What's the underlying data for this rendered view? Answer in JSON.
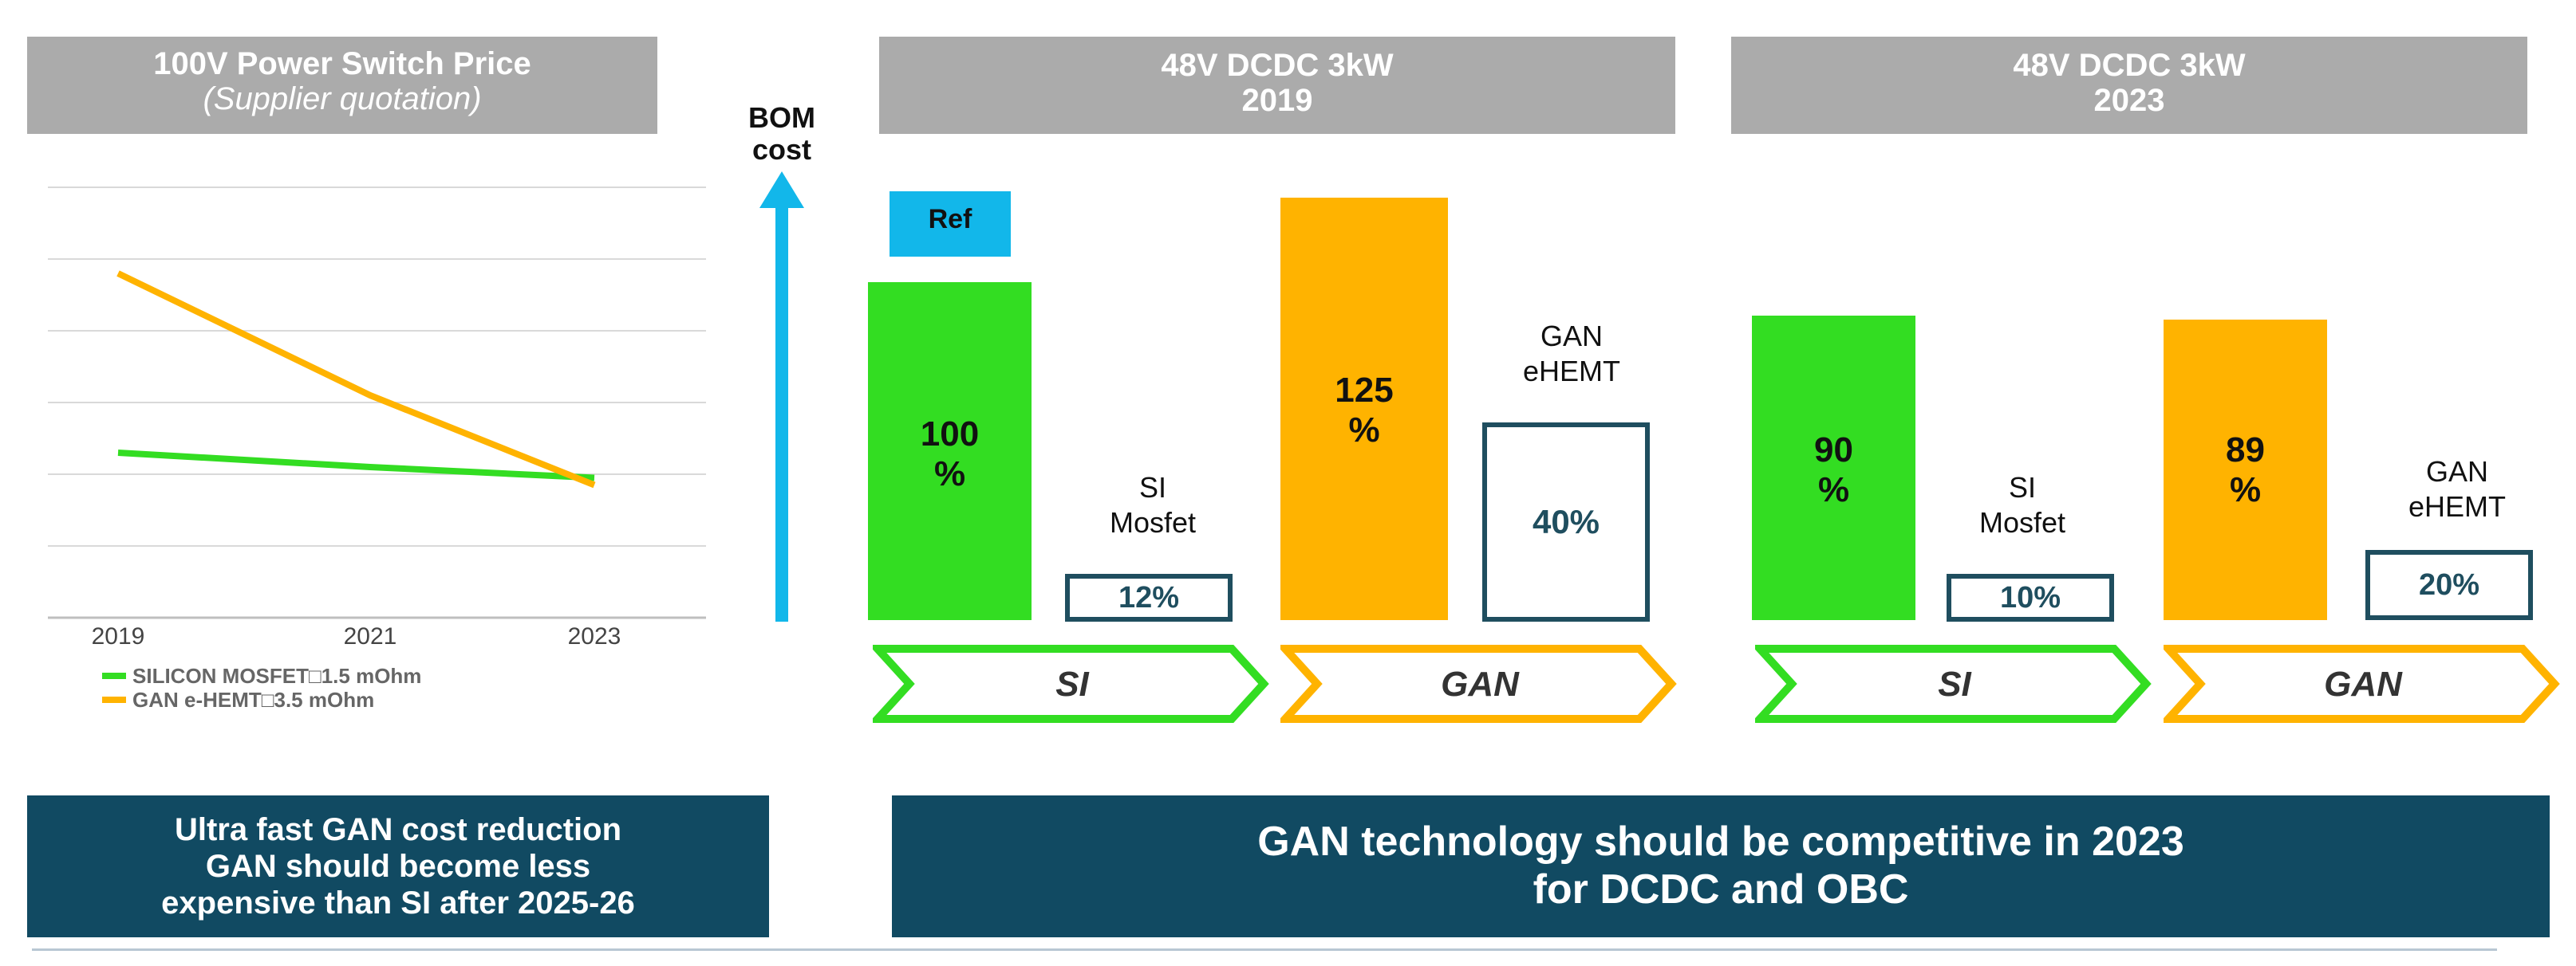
{
  "left_panel": {
    "title": "100V Power Switch Price",
    "subtitle": "(Supplier quotation)"
  },
  "bom": {
    "line1": "BOM",
    "line2": "cost"
  },
  "panels": [
    {
      "title_line1": "48V DCDC 3kW",
      "title_line2": "2019",
      "ref_label": "Ref",
      "si": {
        "bar_label_line1": "100",
        "bar_label_line2": "%",
        "switch_line1": "SI",
        "switch_line2": "Mosfet",
        "switch_value": "12%",
        "tech": "SI"
      },
      "gan": {
        "bar_label_line1": "125",
        "bar_label_line2": "%",
        "switch_line1": "GAN",
        "switch_line2": "eHEMT",
        "switch_value": "40%",
        "tech": "GAN"
      }
    },
    {
      "title_line1": "48V DCDC 3kW",
      "title_line2": "2023",
      "si": {
        "bar_label_line1": "90",
        "bar_label_line2": "%",
        "switch_line1": "SI",
        "switch_line2": "Mosfet",
        "switch_value": "10%",
        "tech": "SI"
      },
      "gan": {
        "bar_label_line1": "89",
        "bar_label_line2": "%",
        "switch_line1": "GAN",
        "switch_line2": "eHEMT",
        "switch_value": "20%",
        "tech": "GAN"
      }
    }
  ],
  "banners": {
    "left_line1": "Ultra fast GAN cost reduction",
    "left_line2": "GAN should become less",
    "left_line3": "expensive than SI after 2025-26",
    "right_line1": "GAN technology should be competitive in 2023",
    "right_line2": "for DCDC and OBC"
  },
  "colors": {
    "si_green": "#33dd22",
    "gan_orange": "#ffb300",
    "ref_blue": "#12b7ea",
    "banner_navy": "#114a62",
    "header_grey": "#ababab"
  },
  "chart_data": [
    {
      "type": "line",
      "title": "100V Power Switch Price",
      "subtitle": "(Supplier quotation)",
      "x": [
        "2019",
        "2021",
        "2023"
      ],
      "series": [
        {
          "name": "SILICON MOSFET□1.5 mOhm",
          "color": "#33dd22",
          "values": [
            2.3,
            2.1,
            1.95
          ]
        },
        {
          "name": "GAN e-HEMT□3.5 mOhm",
          "color": "#ffb300",
          "values": [
            4.8,
            3.1,
            1.85
          ]
        }
      ],
      "ylim": [
        0,
        6
      ],
      "grid": true,
      "legend": "bottom-left"
    },
    {
      "type": "bar",
      "title": "48V DCDC 3kW 2019",
      "ylabel": "BOM cost",
      "categories": [
        "SI",
        "GAN"
      ],
      "values": [
        100,
        125
      ],
      "switch_share": [
        12,
        40
      ],
      "reference": "SI"
    },
    {
      "type": "bar",
      "title": "48V DCDC 3kW 2023",
      "ylabel": "BOM cost",
      "categories": [
        "SI",
        "GAN"
      ],
      "values": [
        90,
        89
      ],
      "switch_share": [
        10,
        20
      ]
    }
  ]
}
